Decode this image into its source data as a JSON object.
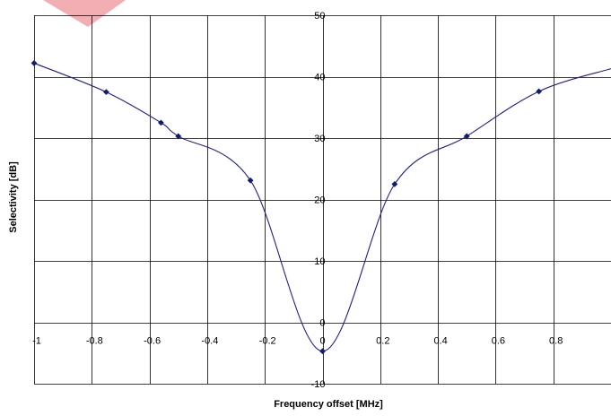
{
  "chart_data": {
    "type": "scatter",
    "xlabel": "Frequency offset [MHz]",
    "ylabel": "Selectivity [dB]",
    "xlim": [
      -1,
      1
    ],
    "ylim": [
      -10,
      50
    ],
    "x_ticks": [
      "-1",
      "-0.8",
      "-0.6",
      "-0.4",
      "-0.2",
      "0",
      "0.2",
      "0.4",
      "0.6",
      "0.8"
    ],
    "y_ticks": [
      "-10",
      "0",
      "10",
      "20",
      "30",
      "40",
      "50"
    ],
    "grid": true,
    "legend": "none",
    "series": [
      {
        "x": [
          -1,
          -0.75,
          -0.56,
          -0.5,
          -0.25,
          0,
          0.25,
          0.5,
          0.75
        ],
        "y": [
          42.2,
          37.5,
          32.5,
          30.3,
          23.1,
          -4.7,
          22.5,
          30.3,
          37.6
        ],
        "marker": "diamond",
        "line": "smoothed",
        "extends_to_right_edge_y": 41.3
      }
    ],
    "colors": {
      "series": "#1f1f8f",
      "marker": "#0f1f6e",
      "grid": "#000000",
      "watermark": "#e8525a"
    }
  }
}
